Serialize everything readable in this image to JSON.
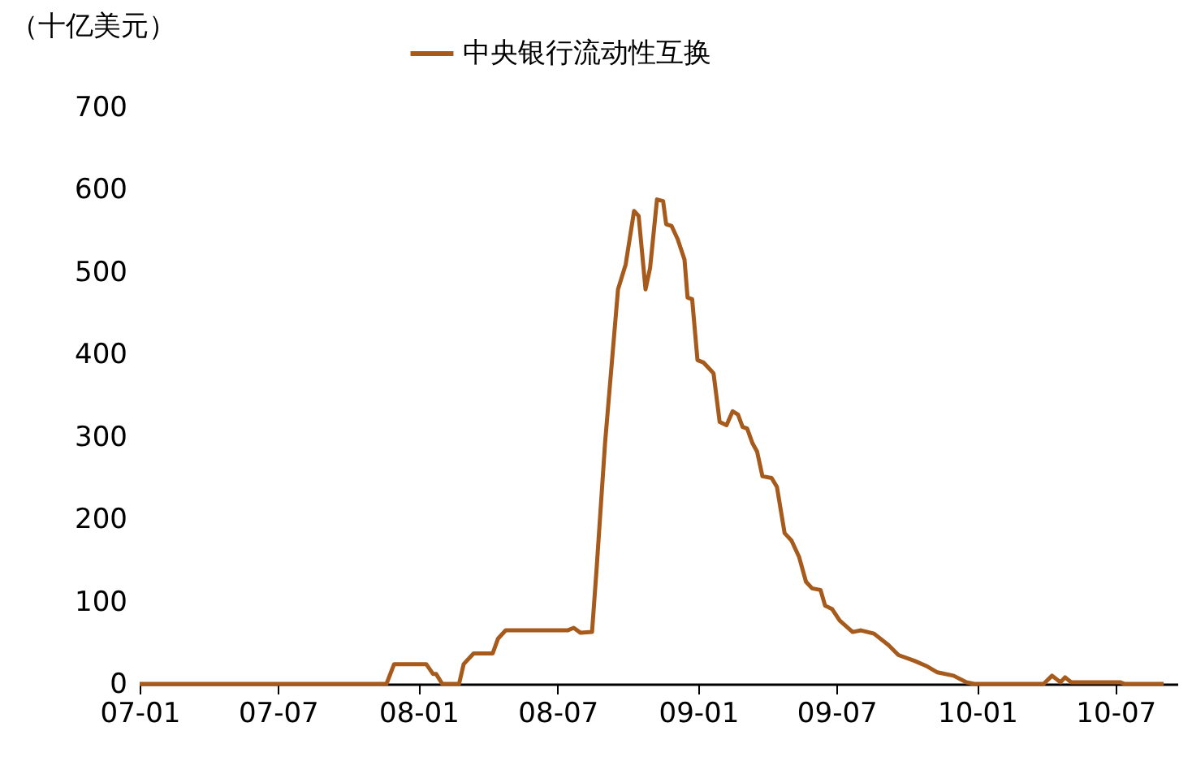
{
  "chart_data": {
    "type": "line",
    "ylabel": "（十亿美元）",
    "legend": "top",
    "x": [
      "2007-01-01",
      "2007-11-20",
      "2007-11-30",
      "2008-01-11",
      "2008-01-20",
      "2008-01-24",
      "2008-02-01",
      "2008-02-23",
      "2008-02-29",
      "2008-03-13",
      "2008-04-07",
      "2008-04-14",
      "2008-04-24",
      "2008-07-14",
      "2008-07-22",
      "2008-07-31",
      "2008-08-15",
      "2008-08-21",
      "2008-09-01",
      "2008-09-18",
      "2008-09-28",
      "2008-10-09",
      "2008-10-15",
      "2008-10-24",
      "2008-10-30",
      "2008-11-08",
      "2008-11-16",
      "2008-11-20",
      "2008-11-27",
      "2008-12-05",
      "2008-12-14",
      "2008-12-18",
      "2008-12-24",
      "2008-12-31",
      "2009-01-08",
      "2009-01-17",
      "2009-01-21",
      "2009-01-29",
      "2009-02-07",
      "2009-02-15",
      "2009-02-22",
      "2009-02-28",
      "2009-03-06",
      "2009-03-13",
      "2009-03-19",
      "2009-03-26",
      "2009-04-07",
      "2009-04-14",
      "2009-04-24",
      "2009-05-03",
      "2009-05-13",
      "2009-05-22",
      "2009-05-30",
      "2009-06-10",
      "2009-06-16",
      "2009-06-25",
      "2009-07-05",
      "2009-07-22",
      "2009-08-02",
      "2009-08-19",
      "2009-09-07",
      "2009-09-20",
      "2009-10-11",
      "2009-10-26",
      "2009-11-10",
      "2009-12-01",
      "2009-12-18",
      "2009-12-28",
      "2010-03-29",
      "2010-04-09",
      "2010-04-20",
      "2010-04-26",
      "2010-05-04",
      "2010-07-07",
      "2010-07-13",
      "2010-09-02"
    ],
    "series": [
      {
        "name": "中央银行流动性互换",
        "color": "#a65a1b",
        "values": [
          0,
          0,
          24,
          24,
          12,
          12,
          0,
          0,
          24,
          37,
          37,
          55,
          65,
          65,
          68,
          62,
          63,
          140,
          292,
          479,
          509,
          574,
          568,
          479,
          505,
          588,
          586,
          558,
          556,
          540,
          515,
          469,
          467,
          393,
          390,
          381,
          377,
          318,
          314,
          331,
          327,
          312,
          310,
          292,
          282,
          252,
          250,
          239,
          183,
          174,
          154,
          124,
          116,
          114,
          95,
          91,
          77,
          63,
          65,
          61,
          47,
          35,
          28,
          22,
          14,
          10,
          2,
          0,
          0,
          10,
          2,
          8,
          2,
          2,
          0,
          0
        ]
      }
    ],
    "xlim": [
      "2007-01-01",
      "2010-09-20"
    ],
    "xticks": [
      {
        "value": "2007-01-01",
        "label": "07-01"
      },
      {
        "value": "2007-07-01",
        "label": "07-07"
      },
      {
        "value": "2008-01-01",
        "label": "08-01"
      },
      {
        "value": "2008-07-01",
        "label": "08-07"
      },
      {
        "value": "2009-01-01",
        "label": "09-01"
      },
      {
        "value": "2009-07-01",
        "label": "09-07"
      },
      {
        "value": "2010-01-01",
        "label": "10-01"
      },
      {
        "value": "2010-07-01",
        "label": "10-07"
      }
    ],
    "ylim": [
      0,
      700
    ],
    "yticks": [
      0,
      100,
      200,
      300,
      400,
      500,
      600,
      700
    ],
    "grid": false
  }
}
